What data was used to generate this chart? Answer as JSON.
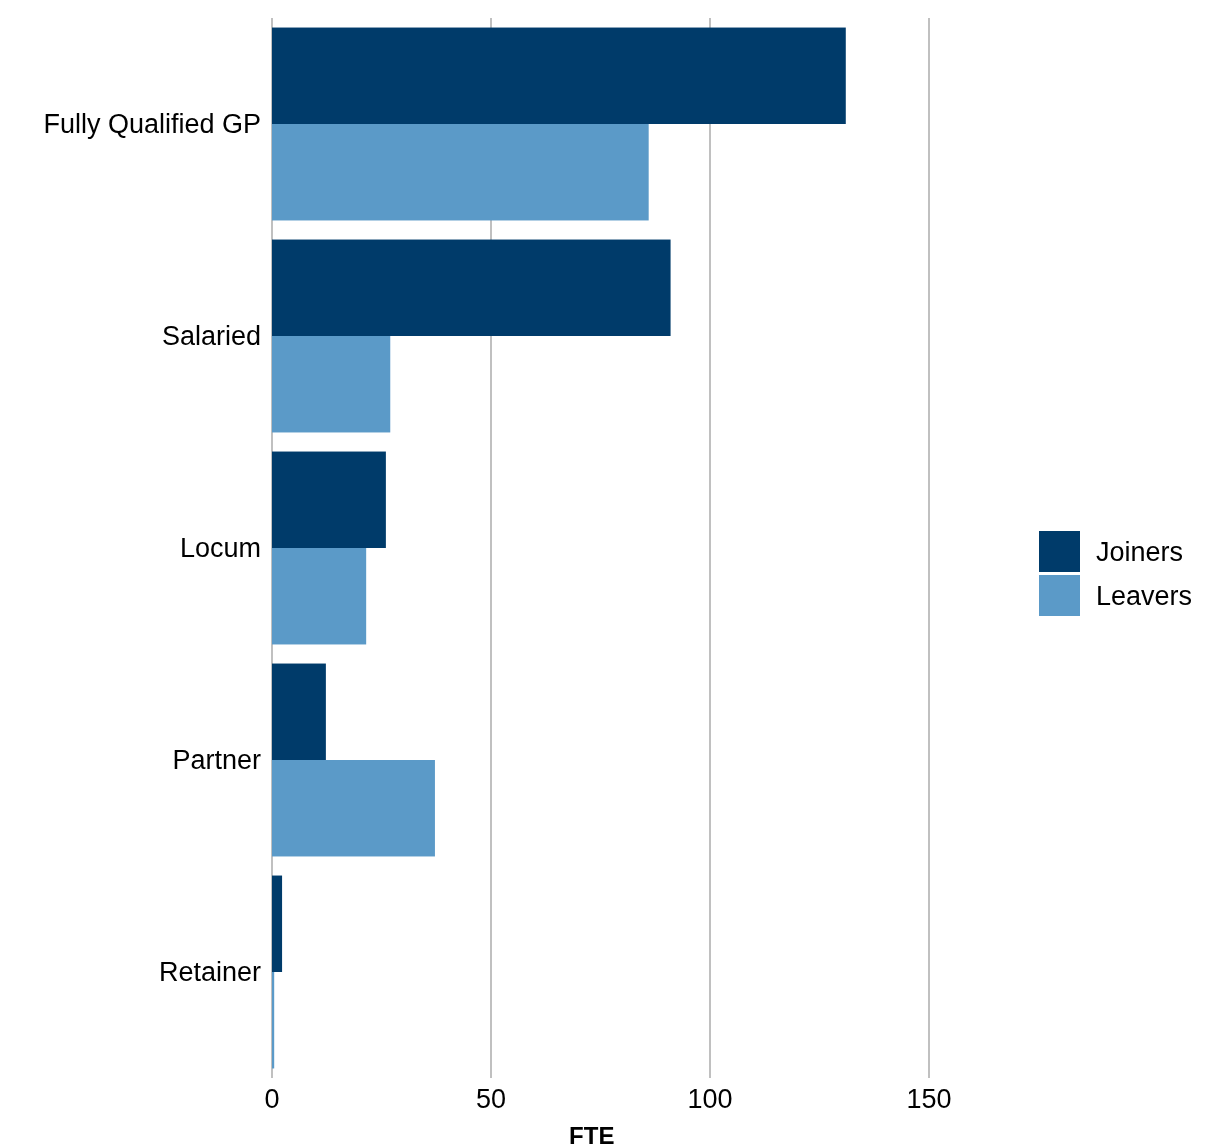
{
  "chart_data": {
    "type": "bar",
    "orientation": "horizontal",
    "xlabel": "FTE",
    "categories": [
      "Fully Qualified GP",
      "Salaried",
      "Locum",
      "Partner",
      "Retainer"
    ],
    "series": [
      {
        "name": "Joiners",
        "color": "#003b6a",
        "values": [
          131,
          91,
          26,
          12.3,
          2.3
        ]
      },
      {
        "name": "Leavers",
        "color": "#5b9ac8",
        "values": [
          86,
          27,
          21.5,
          37.2,
          0.5
        ]
      }
    ],
    "xlim": [
      0,
      150
    ],
    "xticks": [
      0,
      50,
      100,
      150
    ],
    "grid": "x",
    "legend": "right"
  }
}
